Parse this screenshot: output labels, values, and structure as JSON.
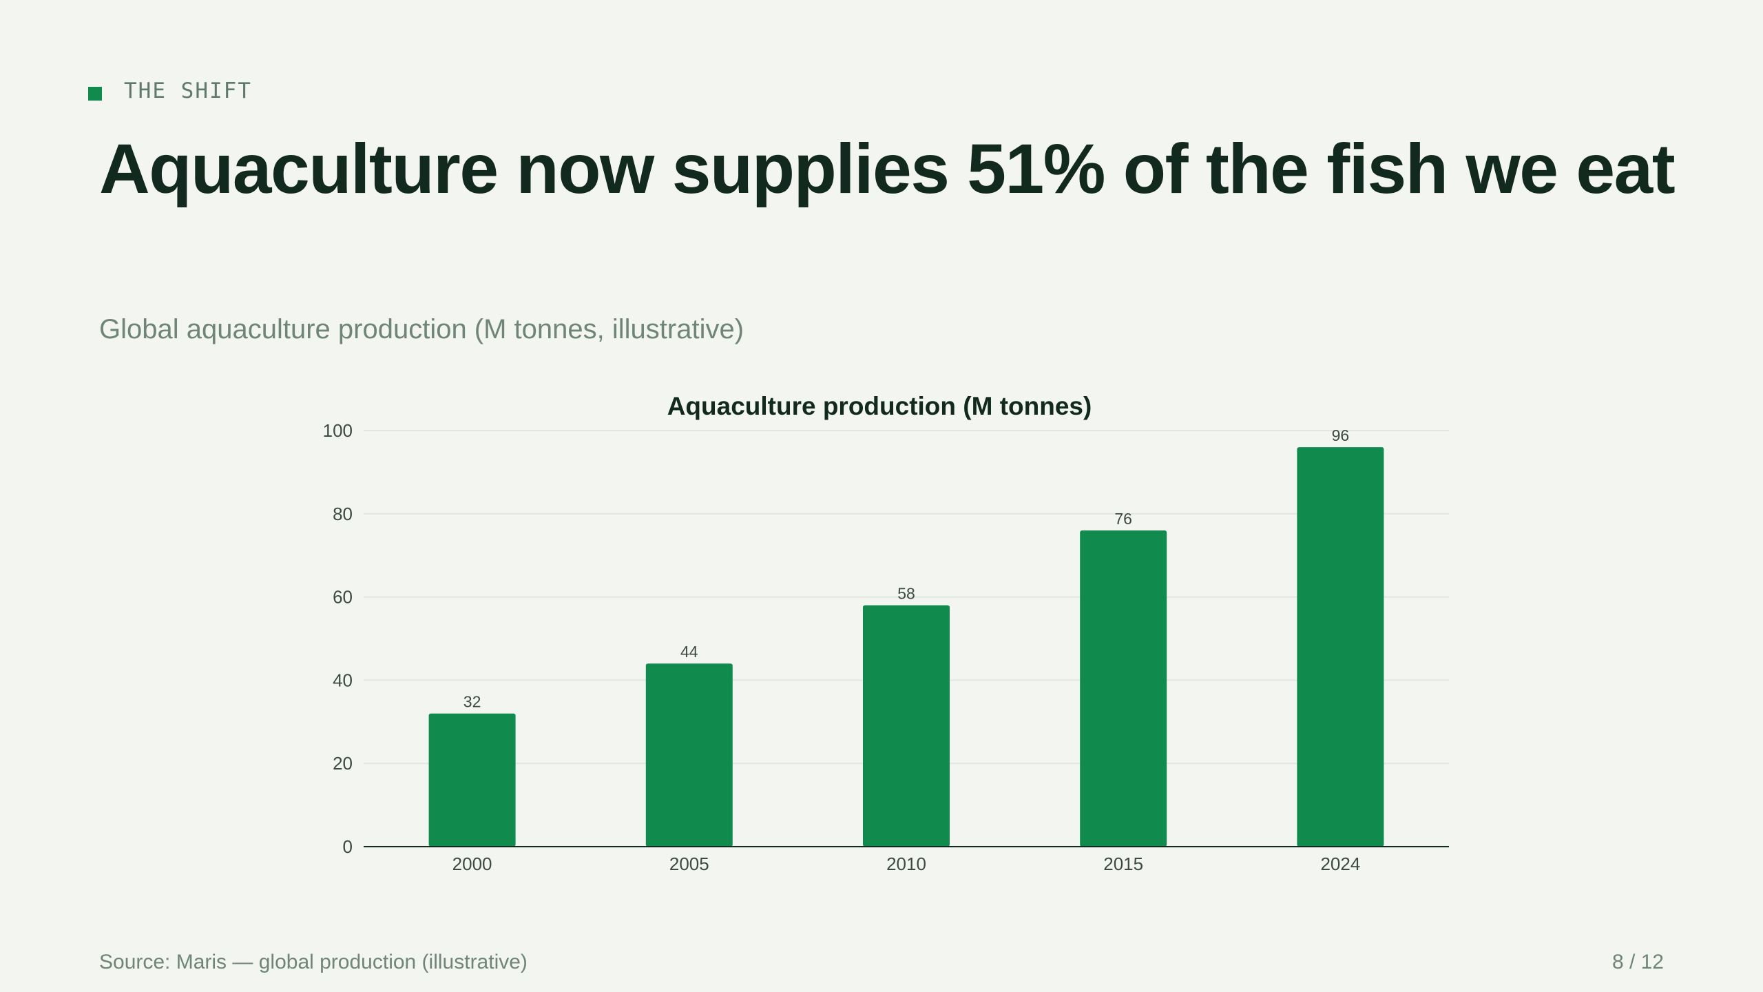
{
  "eyebrow": "THE SHIFT",
  "headline": "Aquaculture now supplies 51% of the fish we eat",
  "subtitle": "Global aquaculture production (M tonnes, illustrative)",
  "footer": {
    "source": "Source: Maris — global production (illustrative)",
    "page": "8 / 12"
  },
  "colors": {
    "accent": "#108b4d",
    "background": "#f3f5f0",
    "text": "#12291f",
    "muted": "#6f8577"
  },
  "chart_data": {
    "type": "bar",
    "title": "Aquaculture production (M tonnes)",
    "categories": [
      "2000",
      "2005",
      "2010",
      "2015",
      "2024"
    ],
    "values": [
      32,
      44,
      58,
      76,
      96
    ],
    "data_labels": [
      "32",
      "44",
      "58",
      "76",
      "96"
    ],
    "y_ticks": [
      "0",
      "20",
      "40",
      "60",
      "80",
      "100"
    ],
    "ylim": [
      0,
      100
    ],
    "xlabel": "",
    "ylabel": "",
    "grid": true,
    "legend": "none",
    "bar_color": "#108b4d"
  }
}
